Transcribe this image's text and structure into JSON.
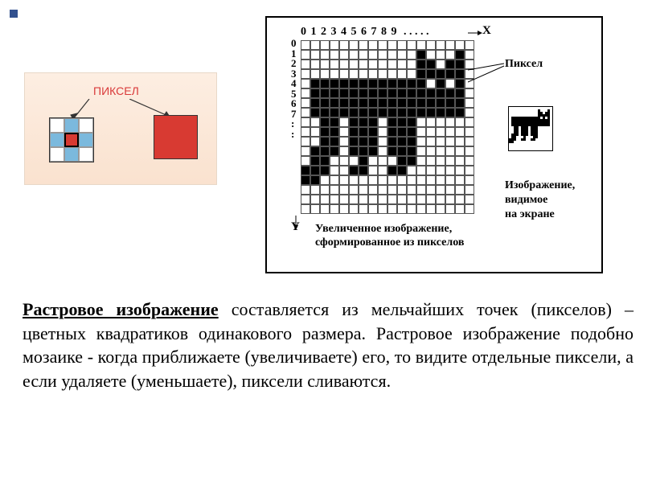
{
  "bullet_color": "#33528f",
  "pixel_diagram": {
    "label": "ПИКСЕЛ",
    "colors": {
      "white": "#ffffff",
      "blue": "#7bb9dd",
      "red": "#d83a32"
    },
    "grid": [
      [
        "white",
        "blue",
        "white"
      ],
      [
        "blue",
        "red",
        "blue"
      ],
      [
        "white",
        "blue",
        "white"
      ]
    ]
  },
  "cat_diagram": {
    "x_numbers": [
      "0",
      "1",
      "2",
      "3",
      "4",
      "5",
      "6",
      "7",
      "8",
      "9"
    ],
    "x_dots": ". . . . .",
    "x_label": "X",
    "y_numbers": [
      "0",
      "1",
      "2",
      "3",
      "4",
      "5",
      "6",
      "7",
      ":",
      ":"
    ],
    "y_label": "Y",
    "pixel_label": "Пиксел",
    "screen_label_1": "Изображение,",
    "screen_label_2": "видимое",
    "screen_label_3": "на экране",
    "caption_1": "Увеличенное изображение,",
    "caption_2": "сформированное из пикселов",
    "grid_size": 18,
    "pattern": [
      "000000000000000000",
      "000000000000100010",
      "000000000000110110",
      "000000000000111110",
      "011111111111101010",
      "011111111111111110",
      "011111111111111110",
      "011111111111111110",
      "001101110111000000",
      "001101110111000000",
      "001101110111000000",
      "011101110111000000",
      "011000100011000000",
      "111001100110000000",
      "110000000000000000",
      "000000000000000000",
      "000000000000000000",
      "000000000000000000"
    ]
  },
  "paragraph": {
    "bold_underlined": "Растровое изображение",
    "rest": " составляется из мельчайших точек (пикселов) – цветных квадратиков одинакового размера. Растровое изображение подобно мозаике - когда приближаете (увеличиваете) его, то видите отдельные пиксели, а если удаляете (уменьшаете), пиксели сливаются."
  }
}
